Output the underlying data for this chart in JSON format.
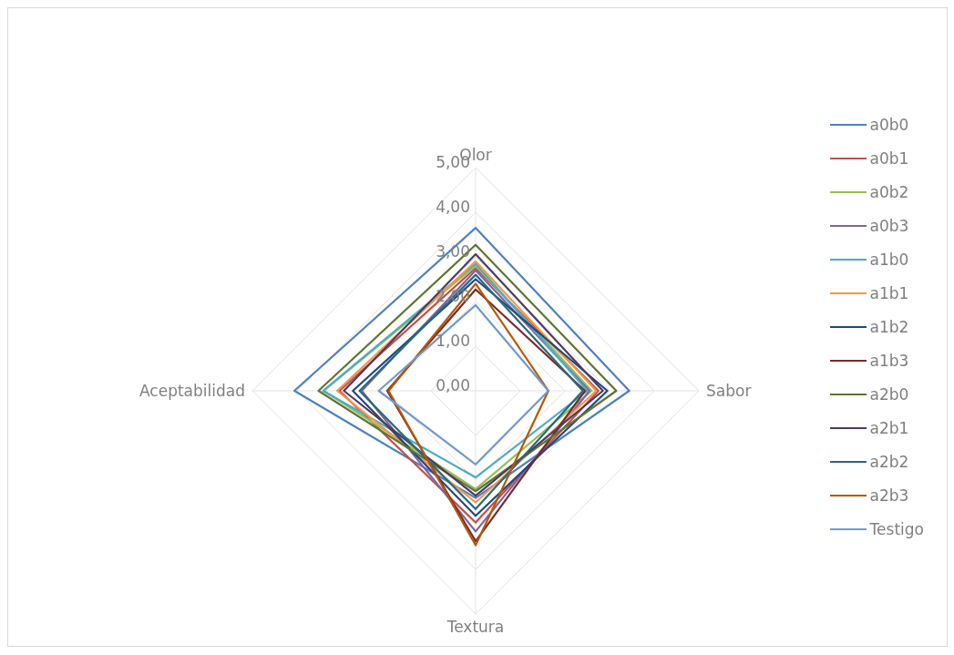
{
  "chart_data": {
    "type": "radar",
    "categories": [
      "Olor",
      "Sabor",
      "Textura",
      "Aceptabilidad"
    ],
    "ylim": [
      0,
      5
    ],
    "yticks": [
      {
        "value": 0,
        "label": "0,00"
      },
      {
        "value": 1,
        "label": "1,00"
      },
      {
        "value": 2,
        "label": "2,00"
      },
      {
        "value": 3,
        "label": "3,00"
      },
      {
        "value": 4,
        "label": "4,00"
      },
      {
        "value": 5,
        "label": "5,00"
      }
    ],
    "grid": true,
    "legend": "right",
    "marker": "none",
    "series": [
      {
        "name": "a0b0",
        "color": "#4f81bd",
        "values": [
          3.65,
          3.44,
          2.4,
          4.06
        ]
      },
      {
        "name": "a0b1",
        "color": "#c0504d",
        "values": [
          2.75,
          2.75,
          2.95,
          3.05
        ]
      },
      {
        "name": "a0b2",
        "color": "#9bbb59",
        "values": [
          2.8,
          2.6,
          2.2,
          3.4
        ]
      },
      {
        "name": "a0b3",
        "color": "#8064a2",
        "values": [
          2.7,
          2.55,
          3.15,
          2.55
        ]
      },
      {
        "name": "a1b0",
        "color": "#4bacc6",
        "values": [
          2.85,
          2.5,
          1.94,
          3.42
        ]
      },
      {
        "name": "a1b1",
        "color": "#f79646",
        "values": [
          2.9,
          2.7,
          2.5,
          3.1
        ]
      },
      {
        "name": "a1b2",
        "color": "#1f497d",
        "values": [
          2.5,
          2.95,
          2.8,
          2.75
        ]
      },
      {
        "name": "a1b3",
        "color": "#772c2a",
        "values": [
          2.27,
          2.45,
          3.37,
          1.98
        ]
      },
      {
        "name": "a2b0",
        "color": "#5f7530",
        "values": [
          3.27,
          3.15,
          2.25,
          3.52
        ]
      },
      {
        "name": "a2b1",
        "color": "#4d3b62",
        "values": [
          3.06,
          2.85,
          2.35,
          2.95
        ]
      },
      {
        "name": "a2b2",
        "color": "#276a7c",
        "values": [
          2.6,
          2.4,
          2.65,
          2.6
        ]
      },
      {
        "name": "a2b3",
        "color": "#b65708",
        "values": [
          2.4,
          1.63,
          3.46,
          1.95
        ]
      },
      {
        "name": "Testigo",
        "color": "#729aca",
        "values": [
          1.92,
          1.63,
          1.65,
          2.17
        ]
      }
    ]
  }
}
